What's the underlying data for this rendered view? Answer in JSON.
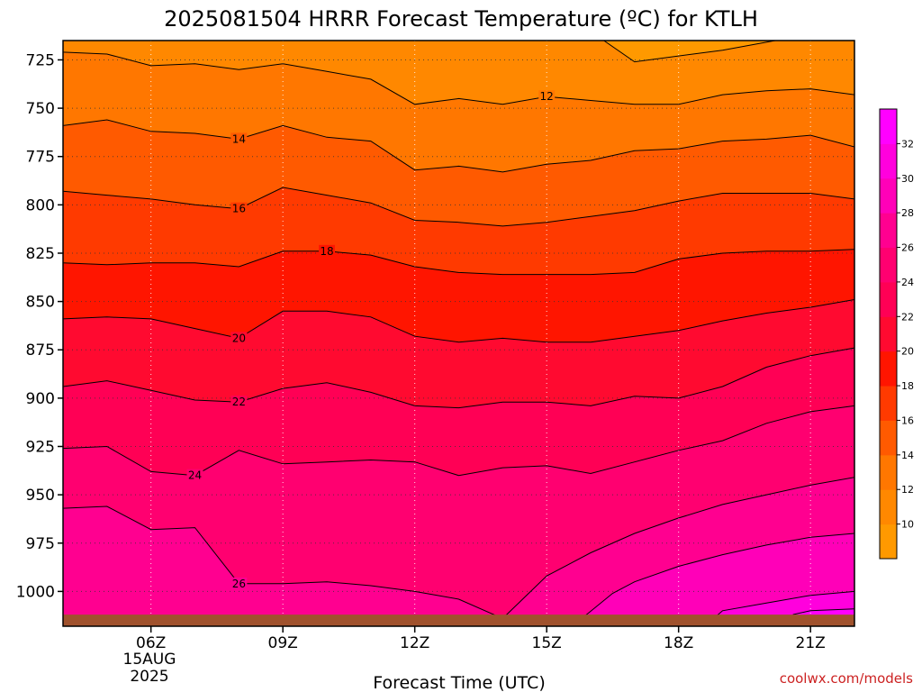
{
  "chart_data": {
    "type": "heatmap",
    "title": "2025081504 HRRR Forecast Temperature (ºC) for KTLH",
    "xlabel": "Forecast Time (UTC)",
    "ylabel": "",
    "units": "ºC",
    "credit": "coolwx.com/models",
    "x_ticks": [
      {
        "hour": 6,
        "label": "06Z"
      },
      {
        "hour": 9,
        "label": "09Z"
      },
      {
        "hour": 12,
        "label": "12Z"
      },
      {
        "hour": 15,
        "label": "15Z"
      },
      {
        "hour": 18,
        "label": "18Z"
      },
      {
        "hour": 21,
        "label": "21Z"
      }
    ],
    "date_label": [
      "15AUG",
      "2025"
    ],
    "xlim": [
      4,
      22
    ],
    "ylim": [
      715,
      1018
    ],
    "y_reversed": true,
    "y_ticks": [
      725,
      750,
      775,
      800,
      825,
      850,
      875,
      900,
      925,
      950,
      975,
      1000
    ],
    "ground_level_hPa": 1012,
    "grid": true,
    "colorbar": {
      "min": 8,
      "max": 34,
      "ticks": [
        10,
        12,
        14,
        16,
        18,
        20,
        22,
        24,
        26,
        28,
        30,
        32
      ],
      "bins": [
        {
          "from": 8,
          "to": 10,
          "color": "#ff9900"
        },
        {
          "from": 10,
          "to": 12,
          "color": "#ff8800"
        },
        {
          "from": 12,
          "to": 14,
          "color": "#ff7700"
        },
        {
          "from": 14,
          "to": 16,
          "color": "#ff5a00"
        },
        {
          "from": 16,
          "to": 18,
          "color": "#ff3a00"
        },
        {
          "from": 18,
          "to": 20,
          "color": "#ff1500"
        },
        {
          "from": 20,
          "to": 22,
          "color": "#ff0a30"
        },
        {
          "from": 22,
          "to": 24,
          "color": "#ff0055"
        },
        {
          "from": 24,
          "to": 26,
          "color": "#ff0070"
        },
        {
          "from": 26,
          "to": 28,
          "color": "#ff0090"
        },
        {
          "from": 28,
          "to": 30,
          "color": "#ff00b8"
        },
        {
          "from": 30,
          "to": 32,
          "color": "#ff00dd"
        },
        {
          "from": 32,
          "to": 34,
          "color": "#ff00ff"
        }
      ]
    },
    "contours": [
      {
        "value": 10,
        "label": "",
        "points": [
          [
            16.3,
            715
          ],
          [
            17.0,
            726
          ],
          [
            19.0,
            720
          ],
          [
            20.2,
            715
          ]
        ]
      },
      {
        "value": 12,
        "label": "12",
        "label_at": [
          15,
          744
        ],
        "points": [
          [
            4,
            721
          ],
          [
            5,
            722
          ],
          [
            6,
            728
          ],
          [
            7,
            727
          ],
          [
            8,
            730
          ],
          [
            9,
            727
          ],
          [
            10,
            731
          ],
          [
            11,
            735
          ],
          [
            12,
            748
          ],
          [
            13,
            745
          ],
          [
            14,
            748
          ],
          [
            15,
            744
          ],
          [
            16,
            746
          ],
          [
            17,
            748
          ],
          [
            18,
            748
          ],
          [
            19,
            743
          ],
          [
            20,
            741
          ],
          [
            21,
            740
          ],
          [
            22,
            743
          ]
        ]
      },
      {
        "value": 14,
        "label": "14",
        "label_at": [
          8,
          766
        ],
        "points": [
          [
            4,
            759
          ],
          [
            5,
            756
          ],
          [
            6,
            762
          ],
          [
            7,
            763
          ],
          [
            8,
            766
          ],
          [
            9,
            759
          ],
          [
            10,
            765
          ],
          [
            11,
            767
          ],
          [
            12,
            782
          ],
          [
            13,
            780
          ],
          [
            14,
            783
          ],
          [
            15,
            779
          ],
          [
            16,
            777
          ],
          [
            17,
            772
          ],
          [
            18,
            771
          ],
          [
            19,
            767
          ],
          [
            20,
            766
          ],
          [
            21,
            764
          ],
          [
            22,
            770
          ]
        ]
      },
      {
        "value": 16,
        "label": "16",
        "label_at": [
          8,
          802
        ],
        "points": [
          [
            4,
            793
          ],
          [
            5,
            795
          ],
          [
            6,
            797
          ],
          [
            7,
            800
          ],
          [
            8,
            802
          ],
          [
            9,
            791
          ],
          [
            10,
            795
          ],
          [
            11,
            799
          ],
          [
            12,
            808
          ],
          [
            13,
            809
          ],
          [
            14,
            811
          ],
          [
            15,
            809
          ],
          [
            16,
            806
          ],
          [
            17,
            803
          ],
          [
            18,
            798
          ],
          [
            19,
            794
          ],
          [
            20,
            794
          ],
          [
            21,
            794
          ],
          [
            22,
            797
          ]
        ]
      },
      {
        "value": 18,
        "label": "18",
        "label_at": [
          10,
          824
        ],
        "points": [
          [
            4,
            830
          ],
          [
            5,
            831
          ],
          [
            6,
            830
          ],
          [
            7,
            830
          ],
          [
            8,
            832
          ],
          [
            9,
            824
          ],
          [
            10,
            824
          ],
          [
            11,
            826
          ],
          [
            12,
            832
          ],
          [
            13,
            835
          ],
          [
            14,
            836
          ],
          [
            15,
            836
          ],
          [
            16,
            836
          ],
          [
            17,
            835
          ],
          [
            18,
            828
          ],
          [
            19,
            825
          ],
          [
            20,
            824
          ],
          [
            21,
            824
          ],
          [
            22,
            823
          ]
        ]
      },
      {
        "value": 20,
        "label": "20",
        "label_at": [
          8,
          869
        ],
        "points": [
          [
            4,
            859
          ],
          [
            5,
            858
          ],
          [
            6,
            859
          ],
          [
            7,
            864
          ],
          [
            8,
            869
          ],
          [
            9,
            855
          ],
          [
            10,
            855
          ],
          [
            11,
            858
          ],
          [
            12,
            868
          ],
          [
            13,
            871
          ],
          [
            14,
            869
          ],
          [
            15,
            871
          ],
          [
            16,
            871
          ],
          [
            17,
            868
          ],
          [
            18,
            865
          ],
          [
            19,
            860
          ],
          [
            20,
            856
          ],
          [
            21,
            853
          ],
          [
            22,
            849
          ]
        ]
      },
      {
        "value": 22,
        "label": "22",
        "label_at": [
          8,
          902
        ],
        "points": [
          [
            4,
            894
          ],
          [
            5,
            891
          ],
          [
            6,
            896
          ],
          [
            7,
            901
          ],
          [
            8,
            902
          ],
          [
            9,
            895
          ],
          [
            10,
            892
          ],
          [
            11,
            897
          ],
          [
            12,
            904
          ],
          [
            13,
            905
          ],
          [
            14,
            902
          ],
          [
            15,
            902
          ],
          [
            16,
            904
          ],
          [
            17,
            899
          ],
          [
            18,
            900
          ],
          [
            19,
            894
          ],
          [
            20,
            884
          ],
          [
            21,
            878
          ],
          [
            22,
            874
          ]
        ]
      },
      {
        "value": 24,
        "label": "24",
        "label_at": [
          7,
          940
        ],
        "points": [
          [
            4,
            926
          ],
          [
            5,
            925
          ],
          [
            6,
            938
          ],
          [
            7,
            940
          ],
          [
            8,
            927
          ],
          [
            9,
            934
          ],
          [
            10,
            933
          ],
          [
            11,
            932
          ],
          [
            12,
            933
          ],
          [
            13,
            940
          ],
          [
            14,
            936
          ],
          [
            15,
            935
          ],
          [
            16,
            939
          ],
          [
            17,
            933
          ],
          [
            18,
            927
          ],
          [
            19,
            922
          ],
          [
            20,
            913
          ],
          [
            21,
            907
          ],
          [
            22,
            904
          ]
        ]
      },
      {
        "value": 26,
        "label": "26",
        "label_at": [
          8,
          996
        ],
        "points": [
          [
            4,
            957
          ],
          [
            5,
            956
          ],
          [
            6,
            968
          ],
          [
            7,
            967
          ],
          [
            8,
            996
          ],
          [
            9,
            996
          ],
          [
            10,
            995
          ],
          [
            11,
            997
          ],
          [
            12,
            1000
          ],
          [
            13,
            1004
          ],
          [
            14,
            1014
          ],
          [
            15,
            992
          ],
          [
            16,
            980
          ],
          [
            17,
            970
          ],
          [
            18,
            962
          ],
          [
            19,
            955
          ],
          [
            20,
            950
          ],
          [
            21,
            945
          ],
          [
            22,
            941
          ]
        ]
      },
      {
        "value": 28,
        "label": "",
        "points": [
          [
            15.8,
            1014
          ],
          [
            16.5,
            1001
          ],
          [
            17,
            995
          ],
          [
            18,
            987
          ],
          [
            19,
            981
          ],
          [
            20,
            976
          ],
          [
            21,
            972
          ],
          [
            22,
            970
          ]
        ]
      },
      {
        "value": 30,
        "label": "",
        "points": [
          [
            18.8,
            1014
          ],
          [
            19,
            1010
          ],
          [
            20,
            1006
          ],
          [
            21,
            1002
          ],
          [
            22,
            1000
          ]
        ]
      },
      {
        "value": 32,
        "label": "",
        "points": [
          [
            20.6,
            1012
          ],
          [
            21,
            1010
          ],
          [
            22,
            1009
          ]
        ]
      }
    ]
  }
}
